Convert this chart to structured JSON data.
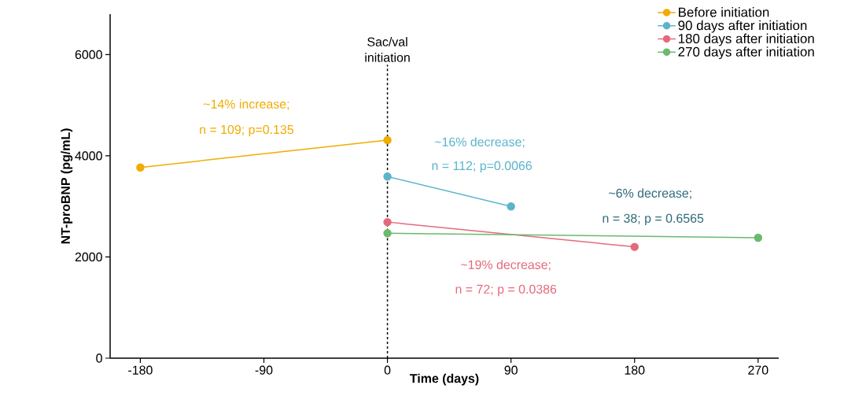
{
  "chart_data": {
    "type": "line",
    "xlabel": "Time (days)",
    "ylabel": "NT-proBNP (pg/mL)",
    "xlim": [
      -202,
      285
    ],
    "ylim": [
      0,
      6800
    ],
    "xticks": [
      -180,
      -90,
      0,
      90,
      180,
      270
    ],
    "yticks": [
      0,
      2000,
      4000,
      6000
    ],
    "series": [
      {
        "name": "Before initiation",
        "color": "#f0ac00",
        "x": [
          -180,
          0
        ],
        "values": [
          3770,
          4310
        ]
      },
      {
        "name": "90 days after initiation",
        "color": "#5bb4cc",
        "x": [
          0,
          90
        ],
        "values": [
          3590,
          3000
        ]
      },
      {
        "name": "180 days after initiation",
        "color": "#e46a7b",
        "x": [
          0,
          180
        ],
        "values": [
          2690,
          2200
        ]
      },
      {
        "name": "270 days after initiation",
        "color": "#6bb96d",
        "x": [
          0,
          270
        ],
        "values": [
          2470,
          2380
        ]
      }
    ],
    "ref_lines": [
      {
        "axis": "x",
        "value": 0,
        "label": "Sac/val initiation",
        "color": "#000000",
        "line_style": "dashed"
      }
    ],
    "annotations": [
      "~14% increase;",
      "n = 109; p=0.135",
      "~16% decrease;",
      "n = 112; p=0.0066",
      "~19% decrease;",
      "n = 72; p = 0.0386",
      "~6% decrease;",
      "n = 38; p = 0.6565"
    ],
    "legend": "top right",
    "marker": "circle",
    "grid": false,
    "line_style": "solid"
  }
}
